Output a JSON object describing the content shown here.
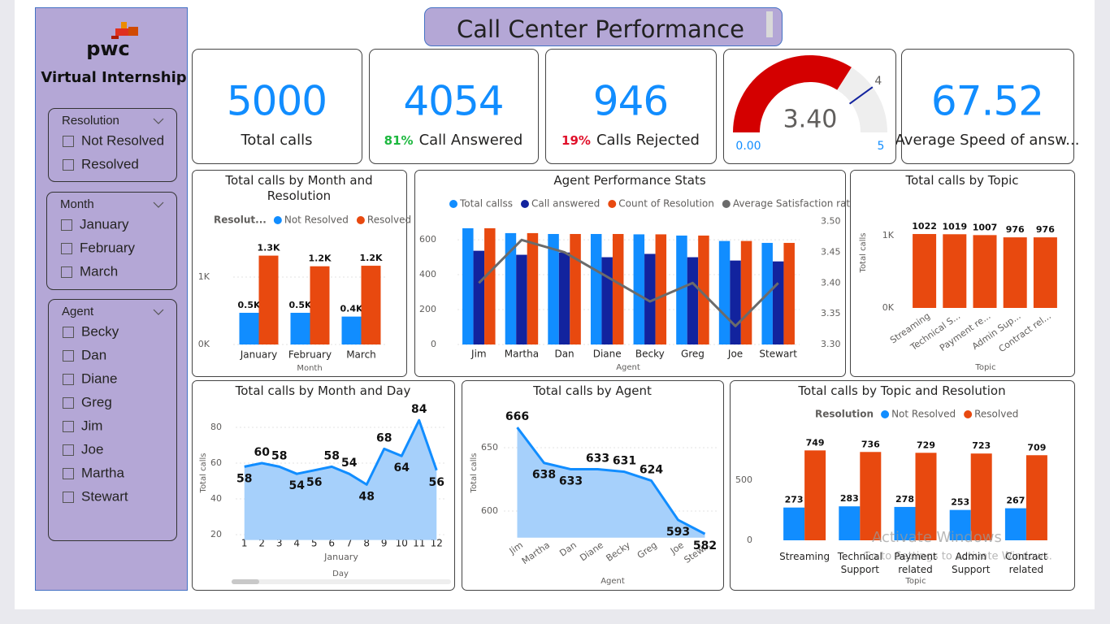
{
  "sidebar": {
    "logo": "pwc",
    "subtitle": "Virtual Internship",
    "slicers": [
      {
        "title": "Resolution",
        "items": [
          "Not Resolved",
          "Resolved"
        ]
      },
      {
        "title": "Month",
        "items": [
          "January",
          "February",
          "March"
        ]
      },
      {
        "title": "Agent",
        "items": [
          "Becky",
          "Dan",
          "Diane",
          "Greg",
          "Jim",
          "Joe",
          "Martha",
          "Stewart"
        ]
      }
    ]
  },
  "header": {
    "title": "Call Center Performance"
  },
  "kpis": [
    {
      "value": "5000",
      "label": "Total calls"
    },
    {
      "value": "4054",
      "percent": "81%",
      "percent_color": "#1DB83F",
      "label": "Call Answered"
    },
    {
      "value": "946",
      "percent": "19%",
      "percent_color": "#E0102A",
      "label": "Calls Rejected"
    },
    {
      "value": "67.52",
      "label": "Average Speed of answ..."
    }
  ],
  "chart_data": [
    {
      "type": "gauge",
      "value": 3.4,
      "value_label": "3.40",
      "min": {
        "value": 0,
        "label": "0.00"
      },
      "max": 5,
      "target": 4,
      "color": "#D40000",
      "track_color": "#EEEEEE",
      "target_color": "#12239E"
    },
    {
      "type": "bar",
      "title": "Total calls by Month and Resolution",
      "legend_title": "Resolut...",
      "x_label": "Month",
      "categories": [
        "January",
        "February",
        "March"
      ],
      "series": [
        {
          "name": "Not Resolved",
          "color": "#118DFF",
          "values": [
            470,
            470,
            414
          ],
          "value_labels": [
            "0.5K",
            "0.5K",
            "0.4K"
          ]
        },
        {
          "name": "Resolved",
          "color": "#E8490F",
          "values": [
            1318,
            1160,
            1168
          ],
          "value_labels": [
            "1.3K",
            "1.2K",
            "1.2K"
          ]
        }
      ],
      "ylim": [
        0,
        1500
      ],
      "yticks": [
        {
          "value": 0,
          "label": "0K"
        },
        {
          "value": 1000,
          "label": "1K"
        }
      ],
      "grid": true,
      "legend": "top",
      "data_labels": true
    },
    {
      "type": "combo",
      "title": "Agent Performance Stats",
      "x_label": "Agent",
      "categories": [
        "Jim",
        "Martha",
        "Dan",
        "Diane",
        "Becky",
        "Greg",
        "Joe",
        "Stewart"
      ],
      "series": [
        {
          "name": "Total callss",
          "color": "#118DFF",
          "values": [
            666,
            638,
            633,
            633,
            631,
            624,
            593,
            582
          ]
        },
        {
          "name": "Call answered",
          "color": "#12239E",
          "values": [
            537,
            514,
            527,
            500,
            519,
            500,
            481,
            476
          ]
        },
        {
          "name": "Count of Resolution",
          "color": "#E8490F",
          "values": [
            666,
            638,
            633,
            633,
            631,
            624,
            593,
            582
          ]
        },
        {
          "name": "Average Satisfaction rating",
          "color": "#6B6B6B",
          "type": "line",
          "axis": "y2",
          "values": [
            3.4,
            3.47,
            3.45,
            3.41,
            3.37,
            3.4,
            3.33,
            3.4
          ]
        }
      ],
      "ylim": [
        0,
        740
      ],
      "yticks": [
        0,
        200,
        400,
        600
      ],
      "y2lim": [
        3.3,
        3.51
      ],
      "y2ticks": [
        {
          "value": 3.3,
          "label": "3.30"
        },
        {
          "value": 3.35,
          "label": "3.35"
        },
        {
          "value": 3.4,
          "label": "3.40"
        },
        {
          "value": 3.45,
          "label": "3.45"
        },
        {
          "value": 3.5,
          "label": "3.50"
        }
      ],
      "grid": true,
      "legend": "top",
      "data_labels": false
    },
    {
      "type": "bar",
      "title": "Total calls by Topic",
      "x_label": "Topic",
      "y_label": "Total calls",
      "categories": [
        "Streaming",
        "Technical S...",
        "Payment re...",
        "Admin Sup...",
        "Contract rel..."
      ],
      "values": [
        1022,
        1019,
        1007,
        976,
        976
      ],
      "color": "#E8490F",
      "ylim": [
        0,
        1220
      ],
      "yticks": [
        {
          "value": 0,
          "label": "0K"
        },
        {
          "value": 1000,
          "label": "1K"
        }
      ],
      "grid": false,
      "data_labels": true
    },
    {
      "type": "area",
      "title": "Total calls by Month and Day",
      "x_label": "Day",
      "x_group_label": "January",
      "y_label": "Total calls",
      "categories": [
        "1",
        "2",
        "3",
        "4",
        "5",
        "6",
        "7",
        "8",
        "9",
        "10",
        "11",
        "12"
      ],
      "values": [
        58,
        60,
        58,
        54,
        56,
        58,
        54,
        48,
        68,
        64,
        84,
        56
      ],
      "color": "#118DFF",
      "area_color": "#A6D0FB",
      "ylim": [
        17,
        86
      ],
      "yticks": [
        20,
        40,
        60,
        80
      ],
      "grid": true,
      "data_labels": true
    },
    {
      "type": "area",
      "title": "Total calls by Agent",
      "x_label": "Agent",
      "y_label": "Total calls",
      "categories": [
        "Jim",
        "Martha",
        "Dan",
        "Diane",
        "Becky",
        "Greg",
        "Joe",
        "Stew..."
      ],
      "values": [
        666,
        638,
        633,
        633,
        631,
        624,
        593,
        582
      ],
      "color": "#118DFF",
      "area_color": "#A6D0FB",
      "ylim": [
        579,
        672
      ],
      "yticks": [
        600,
        650
      ],
      "grid": true,
      "data_labels": true
    },
    {
      "type": "bar",
      "title": "Total calls by Topic and Resolution",
      "legend_title": "Resolution",
      "x_label": "Topic",
      "categories": [
        "Streaming",
        "Technical Support",
        "Payment related",
        "Admin Support",
        "Contract related"
      ],
      "series": [
        {
          "name": "Not Resolved",
          "color": "#118DFF",
          "values": [
            273,
            283,
            278,
            253,
            267
          ]
        },
        {
          "name": "Resolved",
          "color": "#E8490F",
          "values": [
            749,
            736,
            729,
            723,
            709
          ]
        }
      ],
      "ylim": [
        0,
        880
      ],
      "yticks": [
        0,
        500
      ],
      "grid": false,
      "legend": "top",
      "data_labels": true
    }
  ],
  "watermark": {
    "title": "Activate Windows",
    "text": "Go to Settings to activate Windows."
  }
}
